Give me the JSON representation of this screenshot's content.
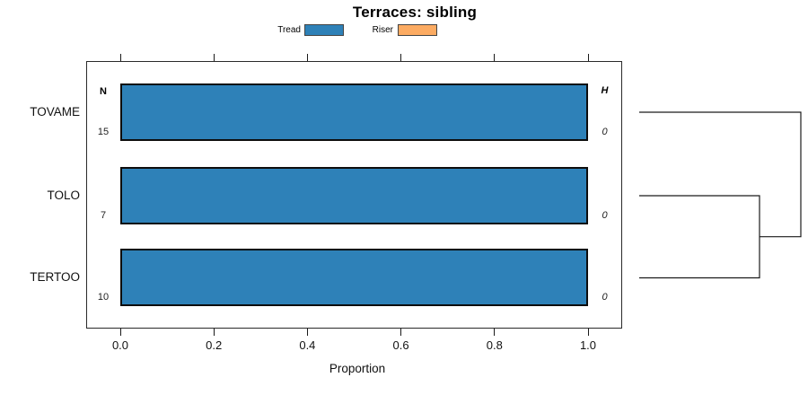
{
  "title": "Terraces: sibling",
  "legend": {
    "items": [
      {
        "label": "Tread",
        "color": "#2E81B8"
      },
      {
        "label": "Riser",
        "color": "#FCAB62"
      }
    ]
  },
  "chart_data": {
    "type": "bar",
    "orientation": "horizontal",
    "title": "Terraces: sibling",
    "xlabel": "Proportion",
    "xlim": [
      0.0,
      1.0
    ],
    "xticks": [
      0.0,
      0.2,
      0.4,
      0.6,
      0.8,
      1.0
    ],
    "top_axis_ticks": true,
    "grid": false,
    "categories": [
      "TOVAME",
      "TOLO",
      "TERTOO"
    ],
    "series": [
      {
        "name": "Tread",
        "color": "#2E81B8",
        "values": [
          1.0,
          1.0,
          1.0
        ]
      },
      {
        "name": "Riser",
        "color": "#FCAB62",
        "values": [
          0.0,
          0.0,
          0.0
        ]
      }
    ],
    "annotations": {
      "left_header": "N",
      "left_values": [
        "15",
        "7",
        "10"
      ],
      "right_header": "H",
      "right_values": [
        "0",
        "0",
        "0"
      ]
    },
    "dendrogram": {
      "side": "right",
      "leaves": [
        "TOVAME",
        "TOLO",
        "TERTOO"
      ],
      "merges": [
        {
          "members": [
            "TOLO",
            "TERTOO"
          ]
        },
        {
          "members": [
            "TOVAME",
            "TOLO+TERTOO"
          ]
        }
      ]
    }
  }
}
